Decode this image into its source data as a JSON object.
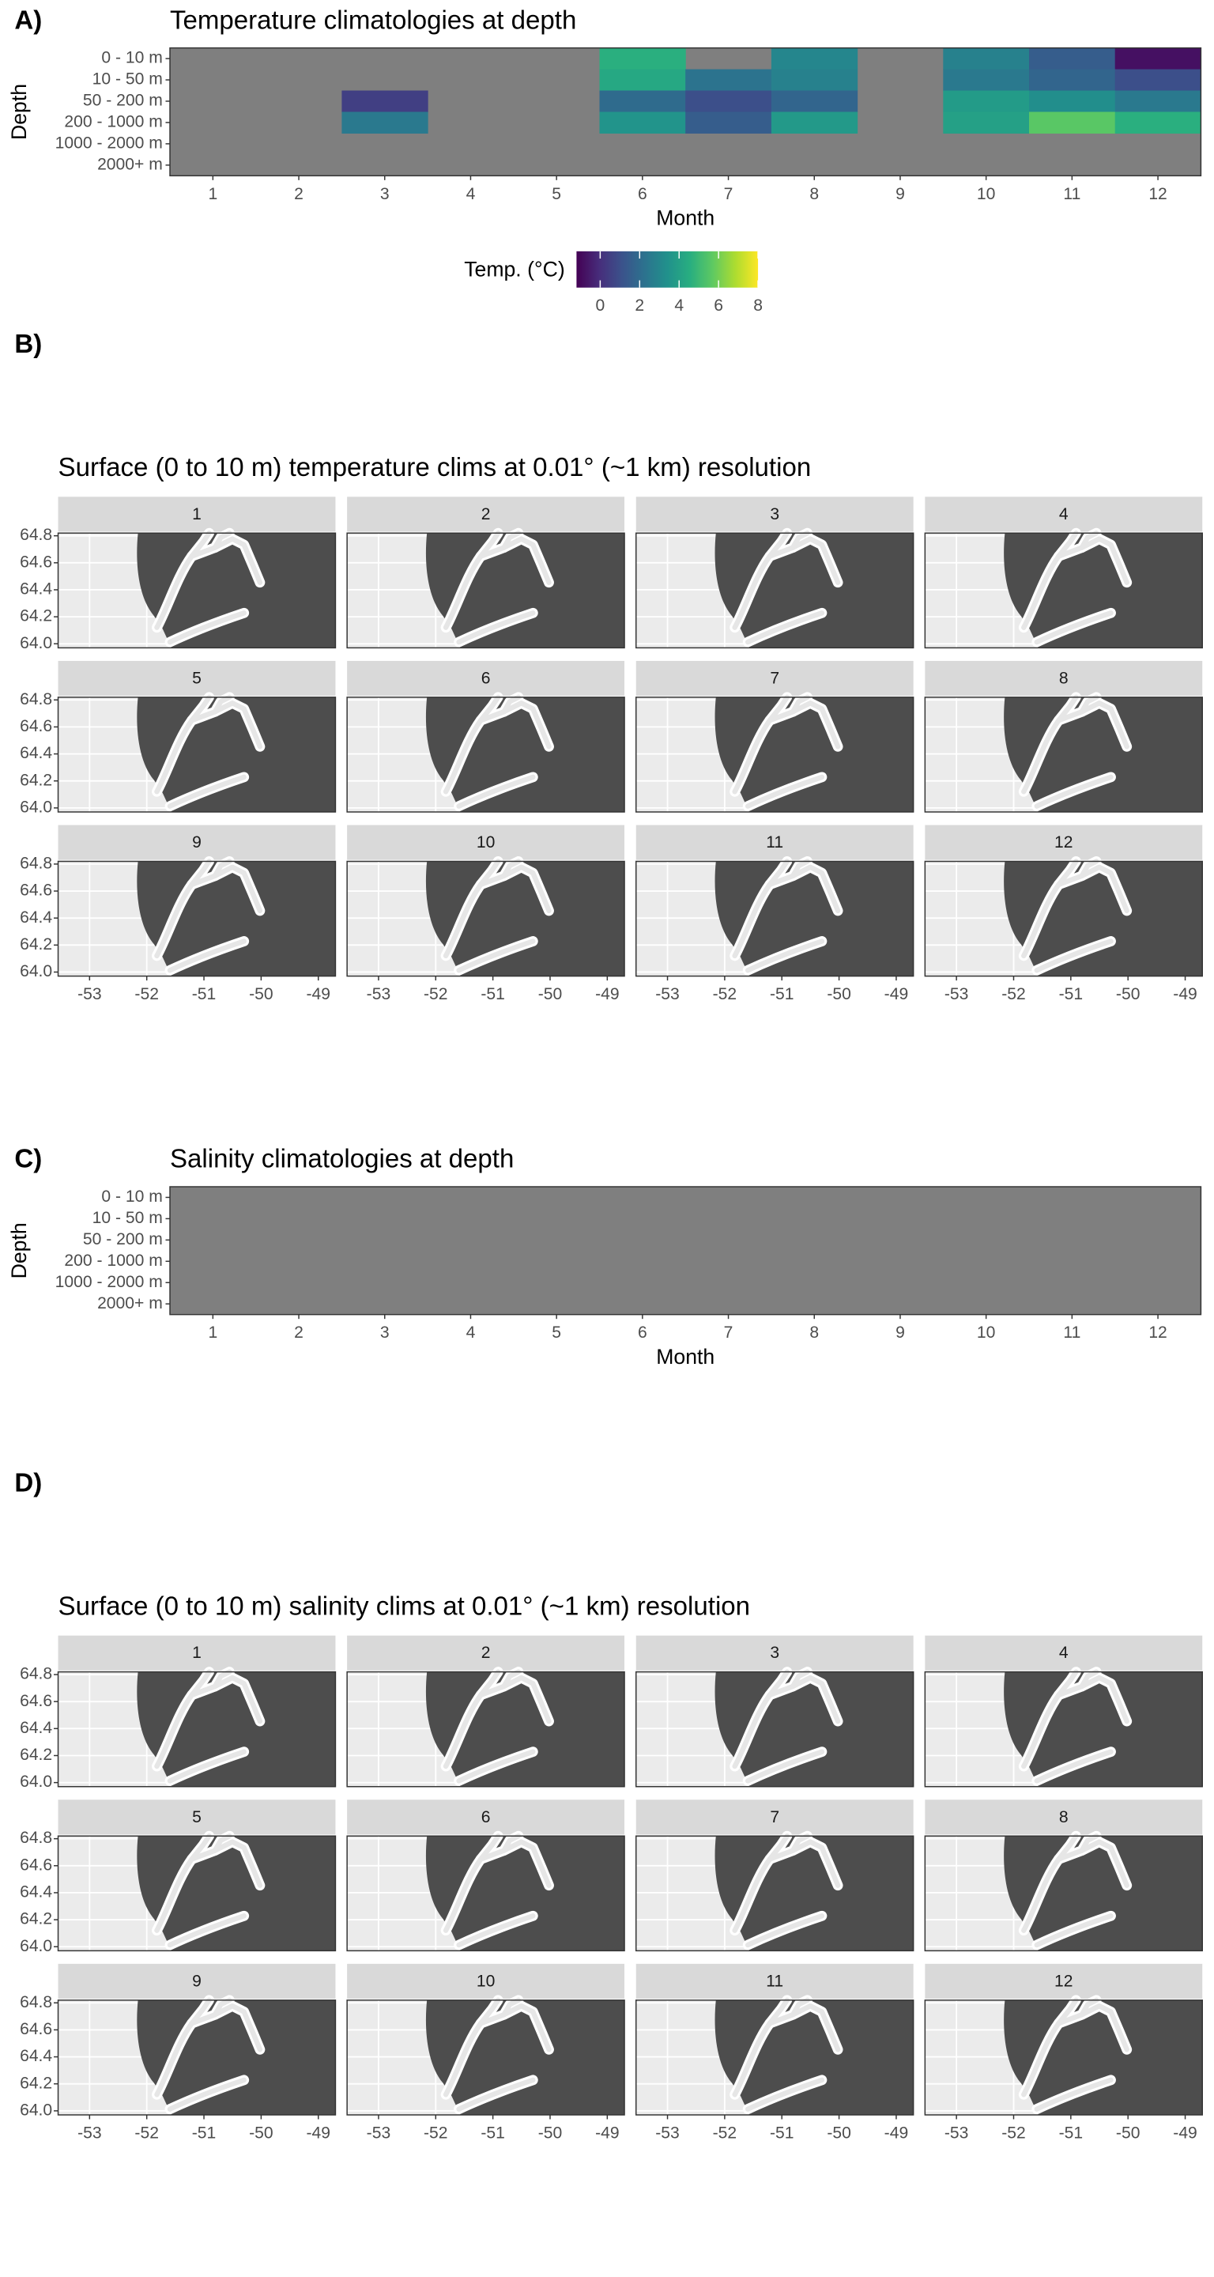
{
  "chart_data": [
    {
      "type": "heatmap",
      "tag": "A)",
      "title": "Temperature climatologies at depth",
      "xlabel": "Month",
      "ylabel": "Depth",
      "categories": [
        1,
        2,
        3,
        4,
        5,
        6,
        7,
        8,
        9,
        10,
        11,
        12
      ],
      "depths": [
        "0 - 10 m",
        "10 - 50 m",
        "50 - 200 m",
        "200 - 1000 m",
        "1000 - 2000 m",
        "2000+ m"
      ],
      "values": [
        [
          null,
          null,
          null,
          null,
          null,
          4.6,
          null,
          3.0,
          null,
          2.8,
          1.5,
          -0.8
        ],
        [
          null,
          null,
          null,
          null,
          null,
          4.3,
          2.3,
          2.8,
          null,
          2.5,
          1.8,
          1.0
        ],
        [
          null,
          null,
          0.5,
          null,
          null,
          2.0,
          1.0,
          1.8,
          null,
          3.8,
          3.3,
          2.5
        ],
        [
          null,
          null,
          2.5,
          null,
          null,
          3.5,
          1.5,
          3.7,
          null,
          4.0,
          5.6,
          4.6
        ],
        [
          null,
          null,
          null,
          null,
          null,
          null,
          null,
          null,
          null,
          null,
          null,
          null
        ],
        [
          null,
          null,
          null,
          null,
          null,
          null,
          null,
          null,
          null,
          null,
          null,
          null
        ]
      ],
      "na_color": "#7f7f7f",
      "colors": [
        "#440154",
        "#472d7b",
        "#3b528b",
        "#2c728e",
        "#21918c",
        "#28ae80",
        "#5ec962",
        "#addc30",
        "#fde725"
      ],
      "clim": [
        -1.2,
        8
      ],
      "legend_title": "Temp. (°C)",
      "cticks": [
        0,
        2,
        4,
        6,
        8
      ]
    },
    {
      "type": "facet_map",
      "tag": "B)",
      "title": "Surface (0 to 10 m) temperature clims at 0.01° (~1 km) resolution",
      "facets": [
        "1",
        "2",
        "3",
        "4",
        "5",
        "6",
        "7",
        "8",
        "9",
        "10",
        "11",
        "12"
      ],
      "xlim": [
        -53.55,
        -48.7
      ],
      "ylim": [
        63.97,
        64.82
      ],
      "xticks": [
        -53,
        -52,
        -51,
        -50,
        -49
      ],
      "yticks": [
        {
          "value": 64,
          "label": "64.0"
        },
        {
          "value": 64.2,
          "label": "64.2"
        },
        {
          "value": 64.4,
          "label": "64.4"
        },
        {
          "value": 64.6,
          "label": "64.6"
        },
        {
          "value": 64.8,
          "label": "64.8"
        }
      ],
      "land_color": "#4d4d4d",
      "sea_color": "#ebebeb"
    },
    {
      "type": "heatmap",
      "tag": "C)",
      "title": "Salinity climatologies at depth",
      "xlabel": "Month",
      "ylabel": "Depth",
      "categories": [
        1,
        2,
        3,
        4,
        5,
        6,
        7,
        8,
        9,
        10,
        11,
        12
      ],
      "depths": [
        "0 - 10 m",
        "10 - 50 m",
        "50 - 200 m",
        "200 - 1000 m",
        "1000 - 2000 m",
        "2000+ m"
      ],
      "values": [
        [
          null,
          null,
          null,
          null,
          null,
          null,
          null,
          null,
          null,
          null,
          null,
          null
        ],
        [
          null,
          null,
          null,
          null,
          null,
          null,
          null,
          null,
          null,
          null,
          null,
          null
        ],
        [
          null,
          null,
          null,
          null,
          null,
          null,
          null,
          null,
          null,
          null,
          null,
          null
        ],
        [
          null,
          null,
          null,
          null,
          null,
          null,
          null,
          null,
          null,
          null,
          null,
          null
        ],
        [
          null,
          null,
          null,
          null,
          null,
          null,
          null,
          null,
          null,
          null,
          null,
          null
        ],
        [
          null,
          null,
          null,
          null,
          null,
          null,
          null,
          null,
          null,
          null,
          null,
          null
        ]
      ],
      "na_color": "#7f7f7f"
    },
    {
      "type": "facet_map",
      "tag": "D)",
      "title": "Surface (0 to 10 m) salinity clims at 0.01° (~1 km) resolution",
      "facets": [
        "1",
        "2",
        "3",
        "4",
        "5",
        "6",
        "7",
        "8",
        "9",
        "10",
        "11",
        "12"
      ],
      "xlim": [
        -53.55,
        -48.7
      ],
      "ylim": [
        63.97,
        64.82
      ],
      "xticks": [
        -53,
        -52,
        -51,
        -50,
        -49
      ],
      "yticks": [
        {
          "value": 64,
          "label": "64.0"
        },
        {
          "value": 64.2,
          "label": "64.2"
        },
        {
          "value": 64.4,
          "label": "64.4"
        },
        {
          "value": 64.6,
          "label": "64.6"
        },
        {
          "value": 64.8,
          "label": "64.8"
        }
      ],
      "land_color": "#4d4d4d",
      "sea_color": "#ebebeb"
    }
  ]
}
